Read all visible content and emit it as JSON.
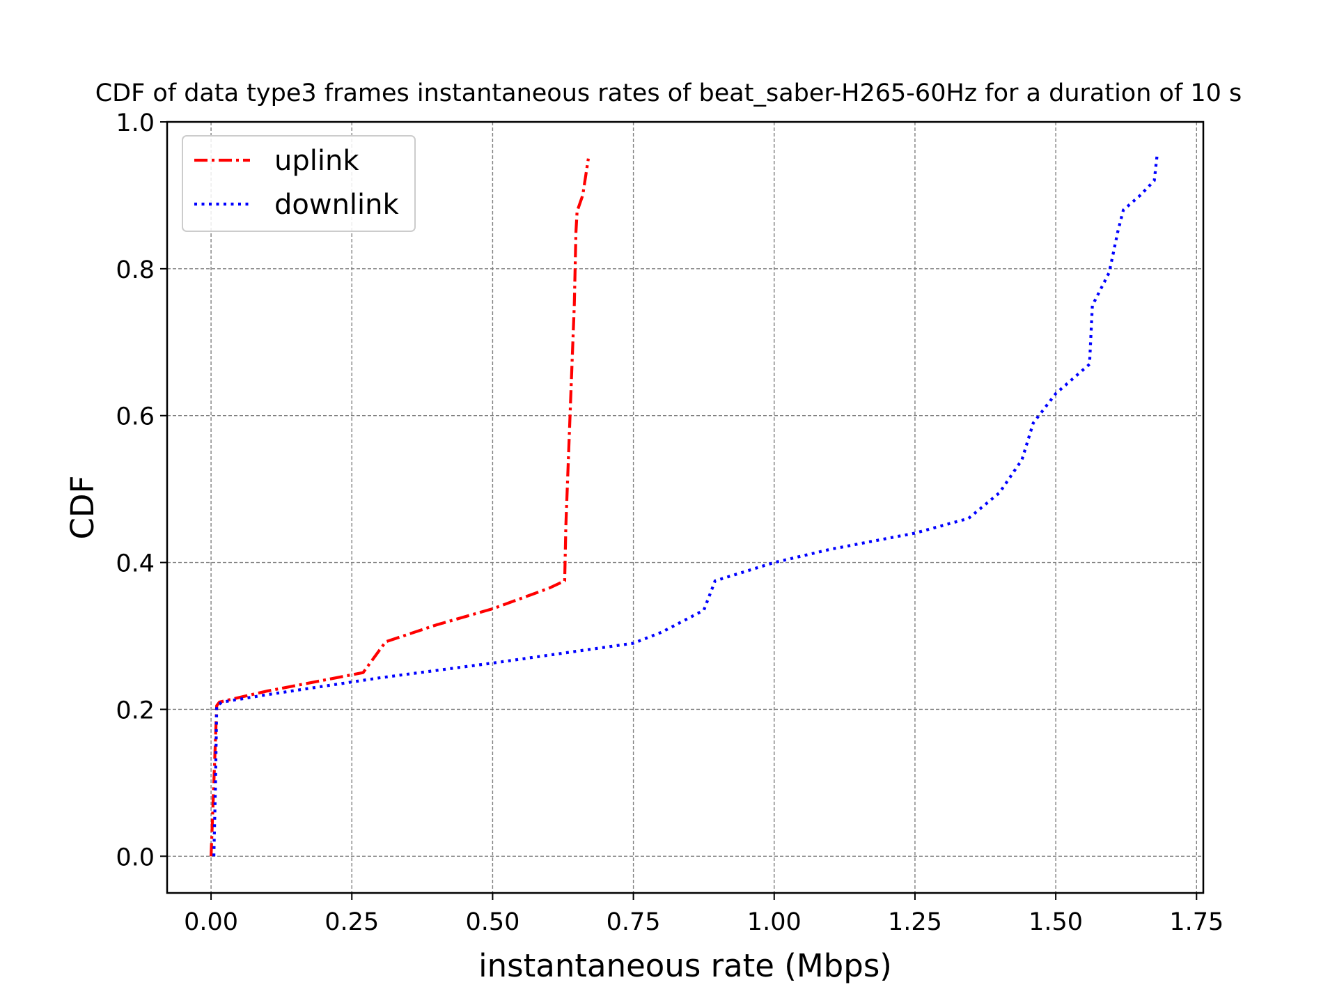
{
  "chart_data": {
    "type": "line",
    "title": "CDF of data type3 frames instantaneous rates of beat_saber-H265-60Hz for a duration of 10 s",
    "xlabel": "instantaneous rate (Mbps)",
    "ylabel": "CDF",
    "xlim": [
      -0.078,
      1.762
    ],
    "ylim": [
      -0.05,
      1.0
    ],
    "xticks": [
      "0.00",
      "0.25",
      "0.50",
      "0.75",
      "1.00",
      "1.25",
      "1.50",
      "1.75"
    ],
    "yticks": [
      "0.0",
      "0.2",
      "0.4",
      "0.6",
      "0.8",
      "1.0"
    ],
    "grid": true,
    "legend_position": "top-left",
    "series": [
      {
        "name": "uplink",
        "color": "#ff0000",
        "style": "dashdot",
        "points": [
          [
            0.0,
            0.0
          ],
          [
            0.005,
            0.1
          ],
          [
            0.01,
            0.205
          ],
          [
            0.015,
            0.21
          ],
          [
            0.1,
            0.225
          ],
          [
            0.27,
            0.25
          ],
          [
            0.31,
            0.292
          ],
          [
            0.4,
            0.315
          ],
          [
            0.5,
            0.337
          ],
          [
            0.6,
            0.365
          ],
          [
            0.628,
            0.375
          ],
          [
            0.63,
            0.45
          ],
          [
            0.635,
            0.55
          ],
          [
            0.64,
            0.65
          ],
          [
            0.645,
            0.75
          ],
          [
            0.648,
            0.85
          ],
          [
            0.65,
            0.878
          ],
          [
            0.66,
            0.9
          ],
          [
            0.67,
            0.95
          ]
        ]
      },
      {
        "name": "downlink",
        "color": "#0000ff",
        "style": "dotted",
        "points": [
          [
            0.005,
            0.0
          ],
          [
            0.008,
            0.1
          ],
          [
            0.01,
            0.205
          ],
          [
            0.02,
            0.21
          ],
          [
            0.1,
            0.22
          ],
          [
            0.3,
            0.243
          ],
          [
            0.5,
            0.263
          ],
          [
            0.75,
            0.29
          ],
          [
            0.8,
            0.305
          ],
          [
            0.875,
            0.335
          ],
          [
            0.895,
            0.375
          ],
          [
            1.0,
            0.4
          ],
          [
            1.1,
            0.418
          ],
          [
            1.25,
            0.44
          ],
          [
            1.345,
            0.46
          ],
          [
            1.4,
            0.495
          ],
          [
            1.44,
            0.54
          ],
          [
            1.46,
            0.59
          ],
          [
            1.5,
            0.63
          ],
          [
            1.56,
            0.67
          ],
          [
            1.565,
            0.75
          ],
          [
            1.595,
            0.795
          ],
          [
            1.61,
            0.85
          ],
          [
            1.62,
            0.88
          ],
          [
            1.65,
            0.9
          ],
          [
            1.675,
            0.92
          ],
          [
            1.68,
            0.955
          ]
        ]
      }
    ]
  }
}
